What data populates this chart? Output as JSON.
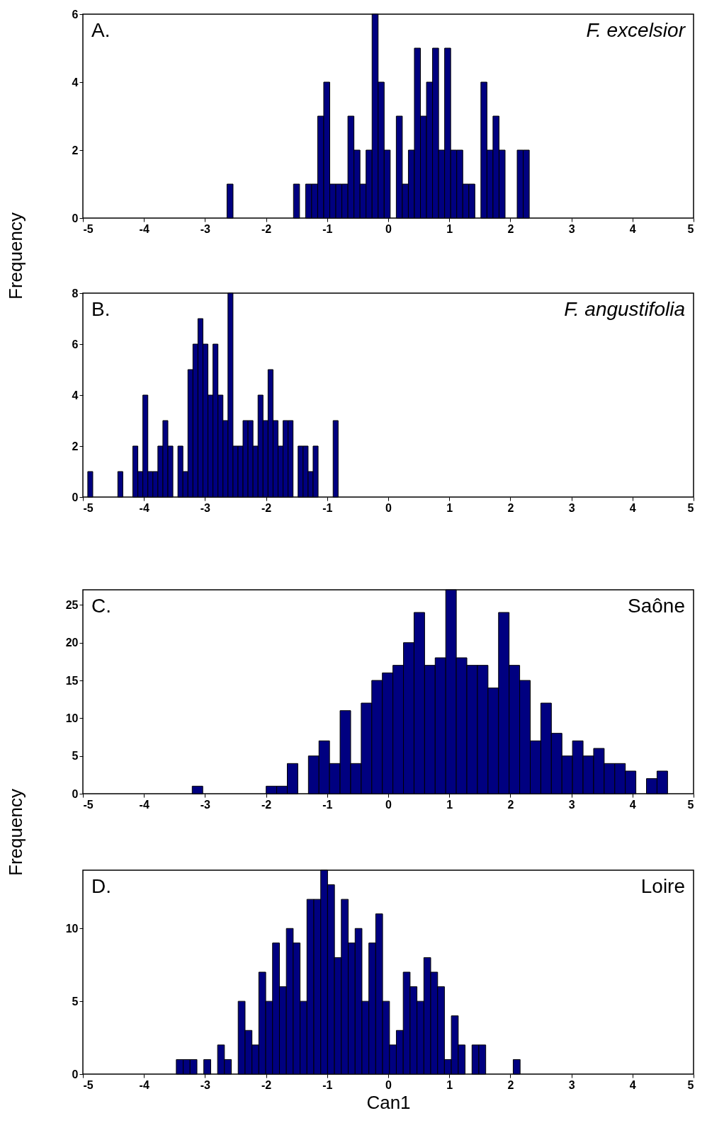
{
  "chart_data": [
    {
      "type": "histogram",
      "color": "#000080",
      "ylabel": "Frequency",
      "annotations": [
        "A.",
        "F. excelsior"
      ],
      "xlim": [
        -5,
        5
      ],
      "xticks": [
        -5,
        -4,
        -3,
        -2,
        -1,
        0,
        1,
        2,
        3,
        4,
        5
      ],
      "ylim": [
        0,
        6
      ],
      "yticks": [
        0,
        2,
        4,
        6
      ],
      "bins": [
        -2.64,
        -2.541,
        -2.442,
        -2.343,
        -2.244,
        -2.145,
        -2.046,
        -1.947,
        -1.848,
        -1.749,
        -1.65,
        -1.551,
        -1.452,
        -1.353,
        -1.254,
        -1.155,
        -1.056,
        -0.957,
        -0.858,
        -0.759,
        -0.66,
        -0.561,
        -0.462,
        -0.363,
        -0.264,
        -0.165,
        -0.066,
        0.033,
        0.132,
        0.231,
        0.33,
        0.429,
        0.528,
        0.627,
        0.726,
        0.825,
        0.924,
        1.023,
        1.122,
        1.221,
        1.32,
        1.419,
        1.518,
        1.617,
        1.716,
        1.815,
        1.914,
        2.013,
        2.112,
        2.211,
        2.31
      ],
      "values": [
        1,
        0,
        0,
        0,
        0,
        0,
        0,
        0,
        0,
        0,
        0,
        1,
        0,
        1,
        1,
        3,
        4,
        1,
        1,
        1,
        3,
        2,
        1,
        2,
        6,
        4,
        2,
        0,
        3,
        1,
        2,
        5,
        3,
        4,
        5,
        2,
        5,
        2,
        2,
        1,
        1,
        0,
        4,
        2,
        3,
        2,
        0,
        0,
        2,
        2
      ]
    },
    {
      "type": "histogram",
      "color": "#000080",
      "annotations": [
        "B.",
        "F. angustifolia"
      ],
      "xlim": [
        -5,
        5
      ],
      "xticks": [
        -5,
        -4,
        -3,
        -2,
        -1,
        0,
        1,
        2,
        3,
        4,
        5
      ],
      "ylim": [
        0,
        8
      ],
      "yticks": [
        0,
        2,
        4,
        6,
        8
      ],
      "bins": [
        -4.92,
        -4.838,
        -4.756,
        -4.674,
        -4.592,
        -4.51,
        -4.428,
        -4.346,
        -4.264,
        -4.182,
        -4.1,
        -4.018,
        -3.936,
        -3.854,
        -3.772,
        -3.69,
        -3.608,
        -3.526,
        -3.444,
        -3.362,
        -3.28,
        -3.198,
        -3.116,
        -3.034,
        -2.952,
        -2.87,
        -2.788,
        -2.706,
        -2.624,
        -2.542,
        -2.46,
        -2.378,
        -2.296,
        -2.214,
        -2.132,
        -2.05,
        -1.968,
        -1.886,
        -1.804,
        -1.722,
        -1.64,
        -1.558,
        -1.476,
        -1.394,
        -1.312,
        -1.23,
        -1.148,
        -1.066,
        -0.984,
        -0.902,
        -0.82
      ],
      "values": [
        1,
        0,
        0,
        0,
        0,
        0,
        1,
        0,
        0,
        2,
        1,
        4,
        1,
        1,
        2,
        3,
        2,
        0,
        2,
        1,
        5,
        6,
        7,
        6,
        4,
        6,
        4,
        3,
        8,
        2,
        2,
        3,
        3,
        2,
        4,
        3,
        5,
        3,
        2,
        3,
        3,
        0,
        2,
        2,
        1,
        2,
        0,
        0,
        0,
        3
      ]
    },
    {
      "type": "histogram",
      "color": "#000080",
      "ylabel": "Frequency",
      "annotations": [
        "C.",
        "Saône"
      ],
      "xlim": [
        -5,
        5
      ],
      "xticks": [
        -5,
        -4,
        -3,
        -2,
        -1,
        0,
        1,
        2,
        3,
        4,
        5
      ],
      "ylim": [
        0,
        27
      ],
      "yticks": [
        0,
        5,
        10,
        15,
        20,
        25
      ],
      "bins": [
        -3.21,
        -3.037,
        -2.864,
        -2.691,
        -2.518,
        -2.345,
        -2.172,
        -1.999,
        -1.826,
        -1.653,
        -1.48,
        -1.307,
        -1.134,
        -0.961,
        -0.788,
        -0.615,
        -0.442,
        -0.269,
        -0.096,
        0.077,
        0.25,
        0.423,
        0.596,
        0.769,
        0.942,
        1.115,
        1.288,
        1.461,
        1.634,
        1.807,
        1.98,
        2.153,
        2.326,
        2.499,
        2.672,
        2.845,
        3.018,
        3.191,
        3.364,
        3.537,
        3.71,
        3.883,
        4.056,
        4.229,
        4.402,
        4.575
      ],
      "values": [
        1,
        0,
        0,
        0,
        0,
        0,
        0,
        1,
        1,
        4,
        0,
        5,
        7,
        4,
        11,
        4,
        12,
        15,
        16,
        17,
        20,
        24,
        17,
        18,
        27,
        18,
        17,
        17,
        14,
        24,
        17,
        15,
        7,
        12,
        8,
        5,
        7,
        5,
        6,
        4,
        4,
        3,
        0,
        2,
        3
      ]
    },
    {
      "type": "histogram",
      "color": "#000080",
      "xlabel": "Can1",
      "annotations": [
        "D.",
        "Loire"
      ],
      "xlim": [
        -5,
        5
      ],
      "xticks": [
        -5,
        -4,
        -3,
        -2,
        -1,
        0,
        1,
        2,
        3,
        4,
        5
      ],
      "ylim": [
        0,
        14
      ],
      "yticks": [
        0,
        5,
        10
      ],
      "bins": [
        -3.47,
        -3.357,
        -3.245,
        -3.132,
        -3.02,
        -2.907,
        -2.794,
        -2.682,
        -2.569,
        -2.457,
        -2.344,
        -2.231,
        -2.119,
        -2.006,
        -1.894,
        -1.781,
        -1.668,
        -1.556,
        -1.443,
        -1.331,
        -1.218,
        -1.105,
        -0.993,
        -0.88,
        -0.768,
        -0.655,
        -0.542,
        -0.43,
        -0.317,
        -0.205,
        -0.092,
        0.021,
        0.133,
        0.246,
        0.358,
        0.471,
        0.584,
        0.696,
        0.809,
        0.921,
        1.034,
        1.147,
        1.259,
        1.372,
        1.484,
        1.597,
        1.71,
        1.822,
        1.935,
        2.047,
        2.16
      ],
      "values": [
        1,
        1,
        1,
        0,
        1,
        0,
        2,
        1,
        0,
        5,
        3,
        2,
        7,
        5,
        9,
        6,
        10,
        9,
        5,
        12,
        12,
        14,
        13,
        8,
        12,
        9,
        10,
        5,
        9,
        11,
        5,
        2,
        3,
        7,
        6,
        5,
        8,
        7,
        6,
        1,
        4,
        2,
        0,
        2,
        2,
        0,
        0,
        0,
        0,
        1
      ]
    }
  ]
}
